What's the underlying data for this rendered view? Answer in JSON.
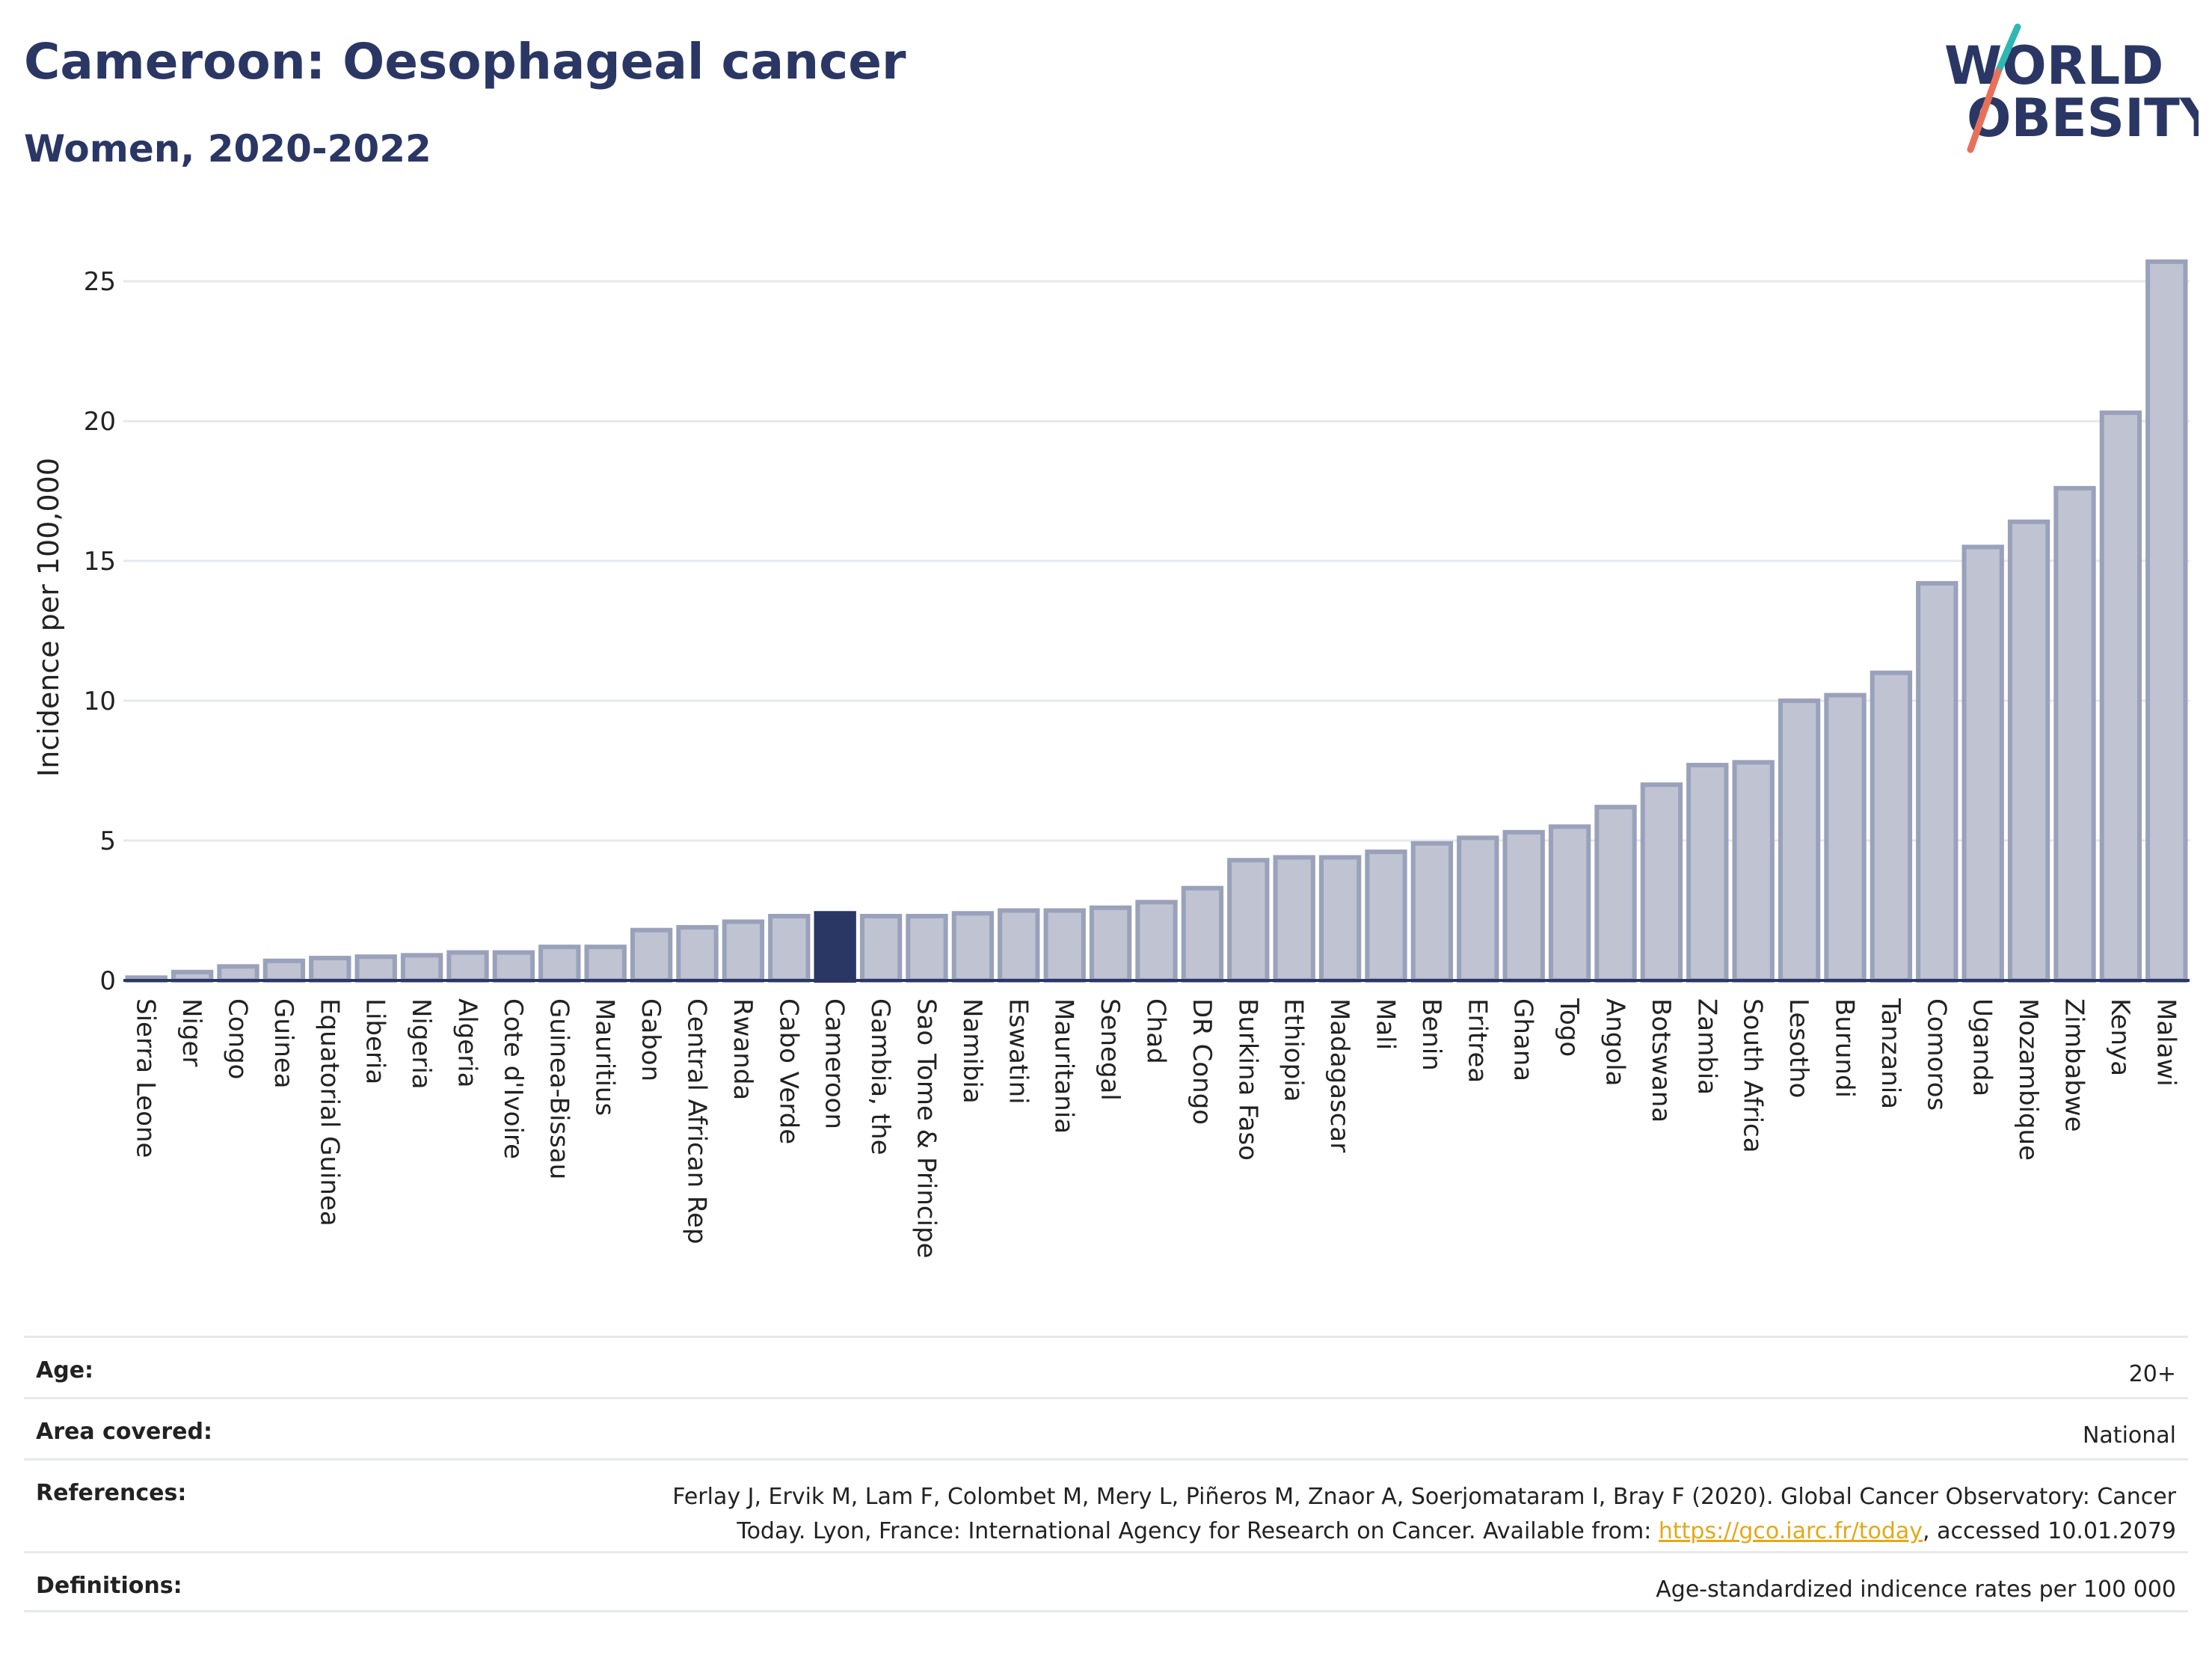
{
  "header": {
    "title": "Cameroon: Oesophageal cancer",
    "subtitle": "Women, 2020-2022"
  },
  "logo": {
    "line1": "WORLD",
    "line2": "OBESITY",
    "colors": {
      "text": "#2a3765",
      "slash_top": "#2fb8b2",
      "slash_bottom": "#e8705a"
    }
  },
  "colors": {
    "bar_fill": "#bfc3d2",
    "bar_stroke": "#9aa1ba",
    "highlight_fill": "#2a3765",
    "grid": "#e6e8ee",
    "axis": "#2a3765"
  },
  "chart_data": {
    "type": "bar",
    "ylabel": "Incidence per 100,000",
    "ylim": [
      0,
      26.5
    ],
    "yticks": [
      0,
      5,
      10,
      15,
      20,
      25
    ],
    "grid": true,
    "highlight": "Cameroon",
    "categories": [
      "Sierra Leone",
      "Niger",
      "Congo",
      "Guinea",
      "Equatorial Guinea",
      "Liberia",
      "Nigeria",
      "Algeria",
      "Cote d'Ivoire",
      "Guinea-Bissau",
      "Mauritius",
      "Gabon",
      "Central African Rep",
      "Rwanda",
      "Cabo Verde",
      "Cameroon",
      "Gambia, the",
      "Sao Tome & Principe",
      "Namibia",
      "Eswatini",
      "Mauritania",
      "Senegal",
      "Chad",
      "DR Congo",
      "Burkina Faso",
      "Ethiopia",
      "Madagascar",
      "Mali",
      "Benin",
      "Eritrea",
      "Ghana",
      "Togo",
      "Angola",
      "Botswana",
      "Zambia",
      "South Africa",
      "Lesotho",
      "Burundi",
      "Tanzania",
      "Comoros",
      "Uganda",
      "Mozambique",
      "Zimbabwe",
      "Kenya",
      "Malawi"
    ],
    "values": [
      0.1,
      0.3,
      0.5,
      0.7,
      0.8,
      0.85,
      0.9,
      1.0,
      1.0,
      1.2,
      1.2,
      1.8,
      1.9,
      2.1,
      2.3,
      2.4,
      2.3,
      2.3,
      2.4,
      2.5,
      2.5,
      2.6,
      2.8,
      3.3,
      4.3,
      4.4,
      4.4,
      4.6,
      4.9,
      5.1,
      5.3,
      5.5,
      6.2,
      7.0,
      7.7,
      7.8,
      10.0,
      10.2,
      11.0,
      14.2,
      15.5,
      16.4,
      17.6,
      20.3,
      25.7
    ]
  },
  "info": {
    "age": {
      "label": "Age:",
      "value": "20+"
    },
    "area": {
      "label": "Area covered:",
      "value": "National"
    },
    "references": {
      "label": "References:",
      "line1": "Ferlay J, Ervik M, Lam F, Colombet M, Mery L, Piñeros M, Znaor A, Soerjomataram I, Bray F (2020). Global Cancer Observatory: Cancer",
      "line2_before": "Today. Lyon, France: International Agency for Research on Cancer. Available from: ",
      "link": "https://gco.iarc.fr/today",
      "line2_after": ", accessed 10.01.2079"
    },
    "definitions": {
      "label": "Definitions:",
      "value": "Age-standardized indicence rates per 100 000"
    }
  }
}
